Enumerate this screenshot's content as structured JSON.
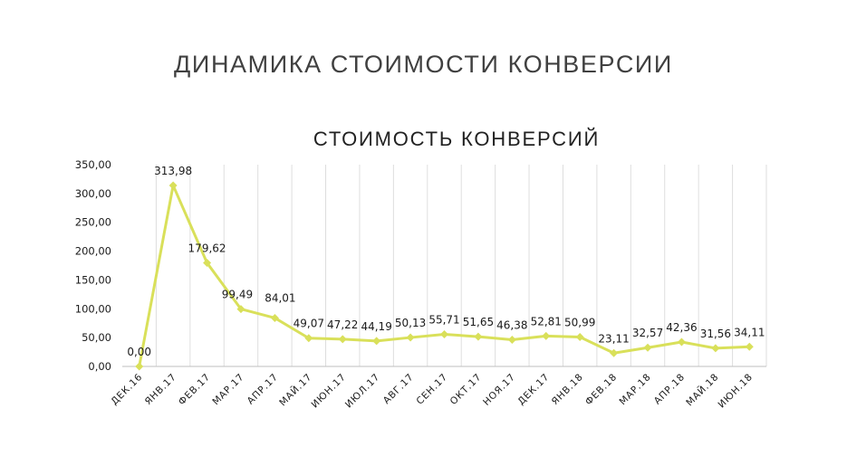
{
  "slide": {
    "title": "ДИНАМИКА СТОИМОСТИ КОНВЕРСИИ"
  },
  "colors": {
    "series": "#d9e05a",
    "grid": "#dedede",
    "axis": "#bfbfbf",
    "text": "#1a1a1a"
  },
  "chart_data": {
    "type": "line",
    "title": "СТОИМОСТЬ КОНВЕРСИЙ",
    "xlabel": "",
    "ylabel": "",
    "categories": [
      "ДЕК.16",
      "ЯНВ.17",
      "ФЕВ.17",
      "МАР.17",
      "АПР.17",
      "МАЙ.17",
      "ИЮН.17",
      "ИЮЛ.17",
      "АВГ.17",
      "СЕН.17",
      "ОКТ.17",
      "НОЯ.17",
      "ДЕК.17",
      "ЯНВ.18",
      "ФЕВ.18",
      "МАР.18",
      "АПР.18",
      "МАЙ.18",
      "ИЮН.18"
    ],
    "values": [
      0.0,
      313.98,
      179.62,
      99.49,
      84.01,
      49.07,
      47.22,
      44.19,
      50.13,
      55.71,
      51.65,
      46.38,
      52.81,
      50.99,
      23.11,
      32.57,
      42.36,
      31.56,
      34.11
    ],
    "value_labels": [
      "0,00",
      "313,98",
      "179,62",
      "99,49",
      "84,01",
      "49,07",
      "47,22",
      "44,19",
      "50,13",
      "55,71",
      "51,65",
      "46,38",
      "52,81",
      "50,99",
      "23,11",
      "32,57",
      "42,36",
      "31,56",
      "34,11"
    ],
    "y_ticks": [
      "0,00",
      "50,00",
      "100,00",
      "150,00",
      "200,00",
      "250,00",
      "300,00",
      "350,00"
    ],
    "ylim": [
      0,
      350
    ],
    "y_step": 50,
    "grid": "vertical",
    "legend": "none",
    "marker": "diamond"
  }
}
